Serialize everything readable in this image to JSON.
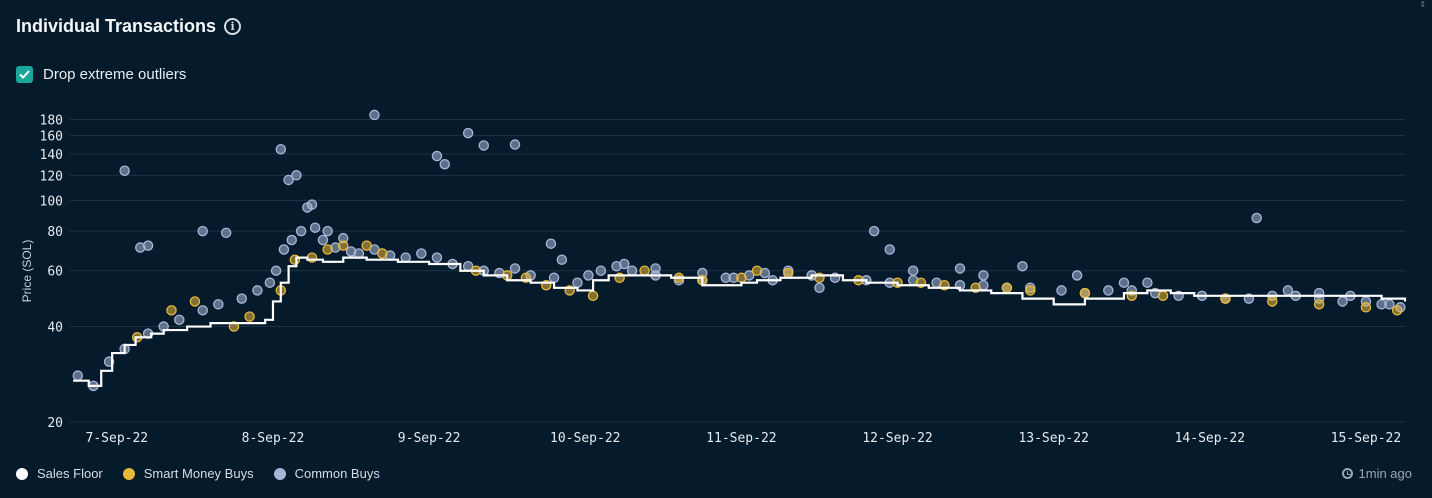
{
  "header": {
    "title": "Individual Transactions",
    "info_icon": "info-icon"
  },
  "toggle": {
    "label": "Drop extreme outliers",
    "checked": true,
    "icon": "check-icon"
  },
  "footer": {
    "updated": "1min ago",
    "updated_icon": "clock-icon"
  },
  "colors": {
    "background": "#051a2b",
    "floor": "#ffffff",
    "smart": "#e8b83a",
    "common": "#a7b6d8",
    "grid": "#1d3447",
    "toggle": "#1aa89a"
  },
  "chart_data": {
    "type": "scatter",
    "ylabel": "Price (SOL)",
    "yscale": "log",
    "ylim": [
      20,
      190
    ],
    "yticks": [
      20,
      40,
      60,
      80,
      100,
      120,
      140,
      160,
      180
    ],
    "xticks": [
      "7-Sep-22",
      "8-Sep-22",
      "9-Sep-22",
      "10-Sep-22",
      "11-Sep-22",
      "12-Sep-22",
      "13-Sep-22",
      "14-Sep-22",
      "15-Sep-22"
    ],
    "xlim": [
      -0.3,
      8.25
    ],
    "legend_position": "bottom-left",
    "series": [
      {
        "name": "Sales Floor",
        "kind": "step-line",
        "color": "#ffffff",
        "points": [
          [
            -0.28,
            27
          ],
          [
            -0.18,
            26
          ],
          [
            -0.1,
            29
          ],
          [
            -0.03,
            33
          ],
          [
            0.05,
            35
          ],
          [
            0.12,
            37
          ],
          [
            0.22,
            38
          ],
          [
            0.3,
            39
          ],
          [
            0.45,
            40
          ],
          [
            0.6,
            41
          ],
          [
            0.8,
            41
          ],
          [
            0.95,
            42
          ],
          [
            1.0,
            48
          ],
          [
            1.05,
            55
          ],
          [
            1.1,
            62
          ],
          [
            1.15,
            66
          ],
          [
            1.22,
            65
          ],
          [
            1.32,
            64
          ],
          [
            1.45,
            66
          ],
          [
            1.6,
            65
          ],
          [
            1.8,
            64
          ],
          [
            2.0,
            63
          ],
          [
            2.2,
            60
          ],
          [
            2.35,
            58
          ],
          [
            2.5,
            56
          ],
          [
            2.65,
            55
          ],
          [
            2.8,
            53
          ],
          [
            2.95,
            52
          ],
          [
            3.05,
            56
          ],
          [
            3.15,
            58
          ],
          [
            3.3,
            58
          ],
          [
            3.55,
            57
          ],
          [
            3.75,
            54
          ],
          [
            4.0,
            55
          ],
          [
            4.1,
            56
          ],
          [
            4.25,
            57
          ],
          [
            4.45,
            58
          ],
          [
            4.65,
            56
          ],
          [
            4.8,
            55
          ],
          [
            5.0,
            54
          ],
          [
            5.2,
            53
          ],
          [
            5.4,
            52
          ],
          [
            5.6,
            51
          ],
          [
            5.8,
            49
          ],
          [
            6.0,
            47
          ],
          [
            6.2,
            49
          ],
          [
            6.45,
            51
          ],
          [
            6.6,
            52
          ],
          [
            6.75,
            51
          ],
          [
            6.9,
            50
          ],
          [
            7.3,
            50
          ],
          [
            7.7,
            50
          ],
          [
            8.1,
            49
          ],
          [
            8.25,
            48
          ]
        ]
      },
      {
        "name": "Smart Money Buys",
        "color": "#e8b83a",
        "points": [
          [
            0.13,
            37
          ],
          [
            0.35,
            45
          ],
          [
            0.5,
            48
          ],
          [
            0.75,
            40
          ],
          [
            0.85,
            43
          ],
          [
            1.05,
            52
          ],
          [
            1.14,
            65
          ],
          [
            1.25,
            66
          ],
          [
            1.35,
            70
          ],
          [
            1.45,
            72
          ],
          [
            1.6,
            72
          ],
          [
            1.7,
            68
          ],
          [
            2.3,
            60
          ],
          [
            2.5,
            58
          ],
          [
            2.62,
            57
          ],
          [
            2.75,
            54
          ],
          [
            2.9,
            52
          ],
          [
            3.05,
            50
          ],
          [
            3.22,
            57
          ],
          [
            3.38,
            60
          ],
          [
            3.6,
            57
          ],
          [
            3.75,
            56
          ],
          [
            4.0,
            57
          ],
          [
            4.1,
            60
          ],
          [
            4.3,
            59
          ],
          [
            4.5,
            57
          ],
          [
            4.75,
            56
          ],
          [
            5.0,
            55
          ],
          [
            5.15,
            55
          ],
          [
            5.3,
            54
          ],
          [
            5.5,
            53
          ],
          [
            5.7,
            53
          ],
          [
            5.85,
            52
          ],
          [
            6.2,
            51
          ],
          [
            6.5,
            50
          ],
          [
            6.7,
            50
          ],
          [
            7.1,
            49
          ],
          [
            7.4,
            48
          ],
          [
            7.7,
            47
          ],
          [
            8.0,
            46
          ],
          [
            8.2,
            45
          ]
        ]
      },
      {
        "name": "Common Buys",
        "color": "#a7b6d8",
        "points": [
          [
            -0.25,
            28
          ],
          [
            -0.15,
            26
          ],
          [
            -0.05,
            31
          ],
          [
            0.05,
            34
          ],
          [
            0.2,
            38
          ],
          [
            0.3,
            40
          ],
          [
            0.4,
            42
          ],
          [
            0.55,
            45
          ],
          [
            0.65,
            47
          ],
          [
            0.8,
            49
          ],
          [
            0.9,
            52
          ],
          [
            0.98,
            55
          ],
          [
            1.02,
            60
          ],
          [
            1.07,
            70
          ],
          [
            1.12,
            75
          ],
          [
            1.18,
            80
          ],
          [
            1.22,
            95
          ],
          [
            1.27,
            82
          ],
          [
            1.32,
            75
          ],
          [
            1.4,
            71
          ],
          [
            1.5,
            69
          ],
          [
            1.55,
            68
          ],
          [
            1.65,
            70
          ],
          [
            1.75,
            67
          ],
          [
            1.85,
            66
          ],
          [
            1.95,
            68
          ],
          [
            2.05,
            66
          ],
          [
            2.15,
            63
          ],
          [
            2.25,
            62
          ],
          [
            2.35,
            60
          ],
          [
            2.45,
            59
          ],
          [
            2.55,
            61
          ],
          [
            2.65,
            58
          ],
          [
            2.8,
            57
          ],
          [
            2.95,
            55
          ],
          [
            3.02,
            58
          ],
          [
            3.1,
            60
          ],
          [
            3.2,
            62
          ],
          [
            3.3,
            60
          ],
          [
            3.45,
            58
          ],
          [
            3.6,
            56
          ],
          [
            3.75,
            56
          ],
          [
            3.9,
            57
          ],
          [
            4.05,
            58
          ],
          [
            4.15,
            59
          ],
          [
            4.3,
            60
          ],
          [
            4.45,
            58
          ],
          [
            4.6,
            57
          ],
          [
            4.8,
            56
          ],
          [
            4.95,
            55
          ],
          [
            5.1,
            56
          ],
          [
            5.25,
            55
          ],
          [
            5.4,
            54
          ],
          [
            5.55,
            54
          ],
          [
            5.7,
            53
          ],
          [
            5.85,
            53
          ],
          [
            6.05,
            52
          ],
          [
            6.2,
            51
          ],
          [
            6.35,
            52
          ],
          [
            6.5,
            52
          ],
          [
            6.65,
            51
          ],
          [
            6.8,
            50
          ],
          [
            6.95,
            50
          ],
          [
            7.1,
            49
          ],
          [
            7.25,
            49
          ],
          [
            7.4,
            50
          ],
          [
            7.55,
            50
          ],
          [
            7.7,
            49
          ],
          [
            7.85,
            48
          ],
          [
            8.0,
            48
          ],
          [
            8.15,
            47
          ],
          [
            8.22,
            46
          ]
        ]
      }
    ],
    "outliers": [
      [
        0.05,
        124
      ],
      [
        0.15,
        71
      ],
      [
        0.2,
        72
      ],
      [
        0.55,
        80
      ],
      [
        0.7,
        79
      ],
      [
        1.05,
        145
      ],
      [
        1.1,
        116
      ],
      [
        1.15,
        120
      ],
      [
        1.25,
        97
      ],
      [
        1.35,
        80
      ],
      [
        1.45,
        76
      ],
      [
        1.65,
        186
      ],
      [
        2.05,
        138
      ],
      [
        2.1,
        130
      ],
      [
        2.25,
        163
      ],
      [
        2.35,
        149
      ],
      [
        2.55,
        150
      ],
      [
        2.78,
        73
      ],
      [
        2.85,
        65
      ],
      [
        3.25,
        63
      ],
      [
        3.45,
        61
      ],
      [
        3.75,
        59
      ],
      [
        3.95,
        57
      ],
      [
        4.2,
        56
      ],
      [
        4.5,
        53
      ],
      [
        4.85,
        80
      ],
      [
        4.95,
        70
      ],
      [
        5.1,
        60
      ],
      [
        5.4,
        61
      ],
      [
        5.55,
        58
      ],
      [
        5.8,
        62
      ],
      [
        6.15,
        58
      ],
      [
        6.45,
        55
      ],
      [
        6.6,
        55
      ],
      [
        7.3,
        88
      ],
      [
        7.5,
        52
      ],
      [
        7.7,
        51
      ],
      [
        7.9,
        50
      ],
      [
        8.1,
        47
      ]
    ]
  }
}
